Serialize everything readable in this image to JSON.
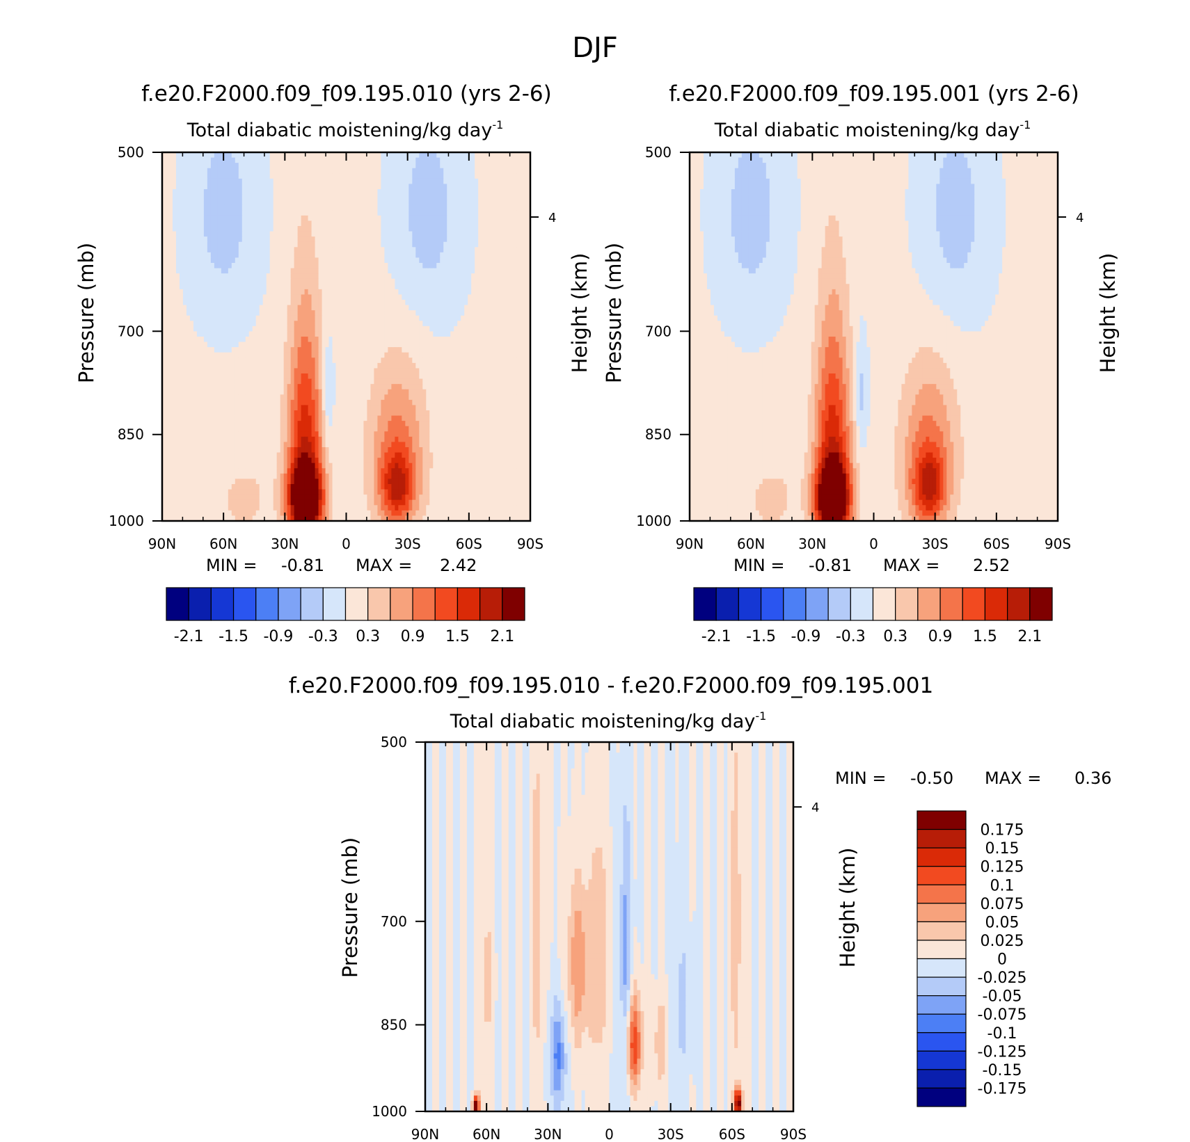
{
  "figure": {
    "title": "DJF"
  },
  "colors": {
    "panel_scale": [
      "#00007f",
      "#0a1fae",
      "#1537d4",
      "#2a55f0",
      "#4c7ff5",
      "#7ea3f6",
      "#b4cbf8",
      "#d6e6fa",
      "#fbe6d8",
      "#f9c7ac",
      "#f7a27c",
      "#f4744a",
      "#f24a20",
      "#da2a07",
      "#b71d07",
      "#7f0000"
    ],
    "diff_scale": [
      "#00007f",
      "#0a1fae",
      "#1537d4",
      "#2a55f0",
      "#4c7ff5",
      "#7ea3f6",
      "#b4cbf8",
      "#d6e6fa",
      "#fbe6d8",
      "#f9c7ac",
      "#f7a27c",
      "#f4744a",
      "#f24a20",
      "#da2a07",
      "#b71d07",
      "#7f0000"
    ]
  },
  "chart_data": [
    {
      "type": "heatmap",
      "title": "f.e20.F2000.f09_f09.195.010 (yrs 2-6)",
      "subtitle": "Total diabatic moistening/kg day",
      "subtitle_exp": "-1",
      "ylabel": "Pressure (mb)",
      "y2label": "Height (km)",
      "x_ticks": [
        "90N",
        "60N",
        "30N",
        "0",
        "30S",
        "60S",
        "90S"
      ],
      "y_ticks": [
        "500",
        "700",
        "850",
        "1000"
      ],
      "y2_ticks": [
        "4"
      ],
      "ylim": [
        1000,
        500
      ],
      "log_pressure": true,
      "min_label": "MIN =",
      "min_value": "-0.81",
      "max_label": "MAX =",
      "max_value": "2.42",
      "colorbar_labels": [
        "-2.1",
        "-1.5",
        "-0.9",
        "-0.3",
        "0.3",
        "0.9",
        "1.5",
        "2.1"
      ],
      "blobs": [
        {
          "lat": 60,
          "p": 560,
          "w": 16,
          "h": 110,
          "v": -0.5
        },
        {
          "lat": -40,
          "p": 560,
          "w": 16,
          "h": 110,
          "v": -0.5
        },
        {
          "lat": 9,
          "p": 790,
          "w": 3,
          "h": 85,
          "v": -0.5
        },
        {
          "lat": 20,
          "p": 900,
          "w": 9,
          "h": 180,
          "v": 1.6
        },
        {
          "lat": 20,
          "p": 960,
          "w": 8,
          "h": 60,
          "v": 2.3
        },
        {
          "lat": 20,
          "p": 700,
          "w": 8,
          "h": 190,
          "v": 0.35
        },
        {
          "lat": -25,
          "p": 880,
          "w": 14,
          "h": 140,
          "v": 1.0
        },
        {
          "lat": -25,
          "p": 940,
          "w": 8,
          "h": 60,
          "v": 1.2
        },
        {
          "lat": 50,
          "p": 960,
          "w": 14,
          "h": 70,
          "v": 0.35
        }
      ]
    },
    {
      "type": "heatmap",
      "title": "f.e20.F2000.f09_f09.195.001 (yrs 2-6)",
      "subtitle": "Total diabatic moistening/kg day",
      "subtitle_exp": "-1",
      "ylabel": "Pressure (mb)",
      "y2label": "Height (km)",
      "x_ticks": [
        "90N",
        "60N",
        "30N",
        "0",
        "30S",
        "60S",
        "90S"
      ],
      "y_ticks": [
        "500",
        "700",
        "850",
        "1000"
      ],
      "y2_ticks": [
        "4"
      ],
      "ylim": [
        1000,
        500
      ],
      "log_pressure": true,
      "min_label": "MIN =",
      "min_value": "-0.81",
      "max_label": "MAX =",
      "max_value": "2.52",
      "colorbar_labels": [
        "-2.1",
        "-1.5",
        "-0.9",
        "-0.3",
        "0.3",
        "0.9",
        "1.5",
        "2.1"
      ],
      "blobs": [
        {
          "lat": 60,
          "p": 560,
          "w": 16,
          "h": 110,
          "v": -0.5
        },
        {
          "lat": -40,
          "p": 560,
          "w": 16,
          "h": 110,
          "v": -0.5
        },
        {
          "lat": 6,
          "p": 790,
          "w": 3,
          "h": 85,
          "v": -0.5
        },
        {
          "lat": 20,
          "p": 900,
          "w": 9,
          "h": 180,
          "v": 1.6
        },
        {
          "lat": 20,
          "p": 960,
          "w": 8,
          "h": 60,
          "v": 2.4
        },
        {
          "lat": 20,
          "p": 700,
          "w": 8,
          "h": 190,
          "v": 0.35
        },
        {
          "lat": -27,
          "p": 880,
          "w": 14,
          "h": 140,
          "v": 1.0
        },
        {
          "lat": -27,
          "p": 940,
          "w": 8,
          "h": 60,
          "v": 1.2
        },
        {
          "lat": 50,
          "p": 960,
          "w": 14,
          "h": 70,
          "v": 0.35
        }
      ]
    },
    {
      "type": "heatmap",
      "title": "f.e20.F2000.f09_f09.195.010 - f.e20.F2000.f09_f09.195.001",
      "subtitle": "Total diabatic moistening/kg day",
      "subtitle_exp": "-1",
      "ylabel": "Pressure (mb)",
      "y2label": "Height (km)",
      "x_ticks": [
        "90N",
        "60N",
        "30N",
        "0",
        "30S",
        "60S",
        "90S"
      ],
      "y_ticks": [
        "500",
        "700",
        "850",
        "1000"
      ],
      "y2_ticks": [
        "4"
      ],
      "ylim": [
        1000,
        500
      ],
      "log_pressure": true,
      "min_label": "MIN =",
      "min_value": "-0.50",
      "max_label": "MAX =",
      "max_value": "0.36",
      "colorbar_labels": [
        "0.175",
        "0.15",
        "0.125",
        "0.1",
        "0.075",
        "0.05",
        "0.025",
        "0",
        "-0.025",
        "-0.05",
        "-0.075",
        "-0.1",
        "-0.125",
        "-0.15",
        "-0.175"
      ],
      "blobs": [
        {
          "lat": 35,
          "p": 700,
          "w": 3,
          "h": 250,
          "v": 0.04
        },
        {
          "lat": 15,
          "p": 760,
          "w": 6,
          "h": 120,
          "v": 0.07
        },
        {
          "lat": 5,
          "p": 740,
          "w": 4,
          "h": 220,
          "v": 0.04
        },
        {
          "lat": -8,
          "p": 760,
          "w": 3,
          "h": 200,
          "v": -0.06
        },
        {
          "lat": -12,
          "p": 880,
          "w": 4,
          "h": 80,
          "v": 0.12
        },
        {
          "lat": 25,
          "p": 900,
          "w": 4,
          "h": 90,
          "v": -0.08
        },
        {
          "lat": 60,
          "p": 780,
          "w": 3,
          "h": 250,
          "v": 0.03
        },
        {
          "lat": -62,
          "p": 700,
          "w": 3,
          "h": 250,
          "v": 0.04
        },
        {
          "lat": -63,
          "p": 985,
          "w": 2,
          "h": 25,
          "v": 0.2
        },
        {
          "lat": 65,
          "p": 990,
          "w": 1.5,
          "h": 20,
          "v": 0.2
        },
        {
          "lat": -25,
          "p": 880,
          "w": 3,
          "h": 70,
          "v": 0.05
        },
        {
          "lat": -35,
          "p": 820,
          "w": 4,
          "h": 160,
          "v": -0.03
        }
      ]
    }
  ]
}
